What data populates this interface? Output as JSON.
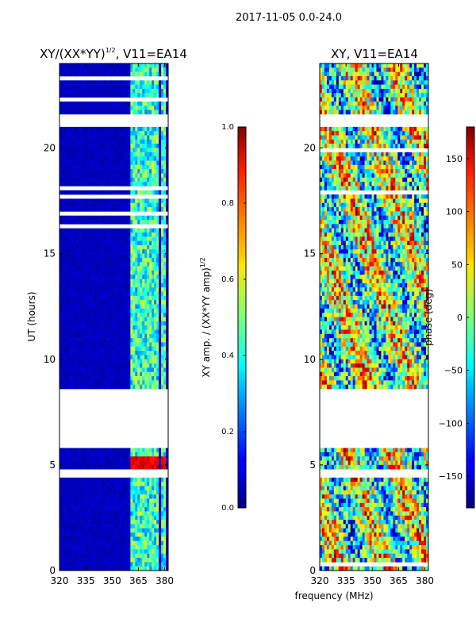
{
  "suptitle": "2017-11-05 0.0-24.0",
  "shared_xlabel": "frequency (MHz)",
  "chart_data": [
    {
      "type": "heatmap",
      "title_main": "XY/(XX*YY)",
      "title_sup": "1/2",
      "title_rest": ", V11=EA14",
      "xlim": [
        320,
        382
      ],
      "ylim": [
        0,
        24
      ],
      "xticks": [
        320,
        335,
        350,
        365,
        380
      ],
      "yticks": [
        0,
        5,
        10,
        15,
        20
      ],
      "ylabel": "UT (hours)",
      "colormap": "jet",
      "colorbar": {
        "label_main": "XY amp. / (XX*YY amp)",
        "label_sup": "1/2",
        "range": [
          0.0,
          1.0
        ],
        "ticks": [
          "0.0",
          "0.2",
          "0.4",
          "0.6",
          "0.8",
          "1.0"
        ]
      },
      "bright_bands_mhz": [
        [
          360,
          364
        ],
        [
          364,
          368
        ],
        [
          369,
          372
        ],
        [
          373,
          376
        ],
        [
          378,
          381
        ]
      ],
      "peak_hours": [
        4.8,
        5.5
      ],
      "flagged_hours": [
        [
          21.1,
          21.6
        ],
        [
          4.4,
          4.9
        ],
        [
          5.9,
          8.6
        ]
      ]
    },
    {
      "type": "heatmap",
      "title": "XY, V11=EA14",
      "xlim": [
        320,
        382
      ],
      "ylim": [
        0,
        24
      ],
      "xticks": [
        320,
        335,
        350,
        365,
        380
      ],
      "yticks": [
        0,
        5,
        10,
        15,
        20
      ],
      "colormap": "jet",
      "colorbar": {
        "label": "phase (deg)",
        "range": [
          -180,
          180
        ],
        "ticks": [
          "150",
          "100",
          "50",
          "0",
          "−50",
          "−100",
          "−150"
        ],
        "tick_values": [
          150,
          100,
          50,
          0,
          -50,
          -100,
          -150
        ]
      },
      "flagged_hours": [
        [
          21.1,
          21.6
        ],
        [
          4.4,
          4.9
        ],
        [
          5.9,
          8.6
        ]
      ]
    }
  ]
}
